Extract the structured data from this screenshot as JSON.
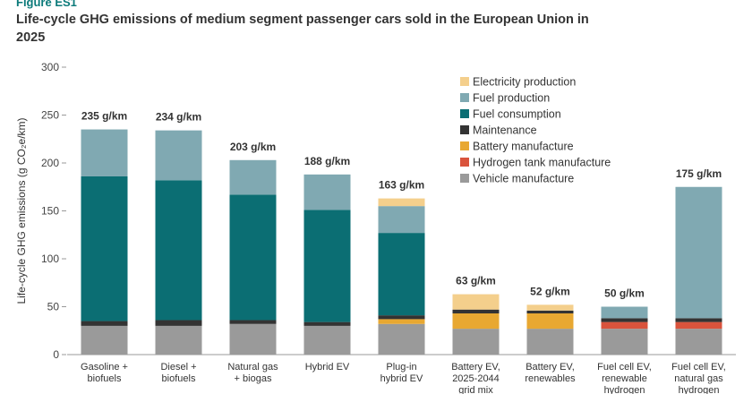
{
  "figure_label": "Figure ES1",
  "chart_data": {
    "type": "bar",
    "stacked": true,
    "title": "Life-cycle GHG emissions of medium segment passenger cars sold in the European Union in 2025",
    "ylabel": "Life-cycle GHG emissions (g CO₂e/km)",
    "xlabel": "",
    "ylim": [
      0,
      300
    ],
    "yticks": [
      0,
      50,
      100,
      150,
      200,
      250,
      300
    ],
    "grid": false,
    "legend_position": "top-right",
    "categories": [
      [
        "Gasoline +",
        "biofuels"
      ],
      [
        "Diesel +",
        "biofuels"
      ],
      [
        "Natural gas",
        "+ biogas"
      ],
      [
        "Hybrid EV"
      ],
      [
        "Plug-in",
        "hybrid EV"
      ],
      [
        "Battery EV,",
        "2025-2044",
        "grid mix"
      ],
      [
        "Battery EV,",
        "renewables"
      ],
      [
        "Fuel cell EV,",
        "renewable",
        "hydrogen"
      ],
      [
        "Fuel cell EV,",
        "natural gas",
        "hydrogen"
      ]
    ],
    "totals": [
      "235 g/km",
      "234 g/km",
      "203 g/km",
      "188 g/km",
      "163 g/km",
      "63 g/km",
      "52 g/km",
      "50 g/km",
      "175 g/km"
    ],
    "series": [
      {
        "name": "Vehicle manufacture",
        "color": "#9a9a9a",
        "values": [
          30,
          30,
          32,
          30,
          32,
          27,
          27,
          27,
          27
        ]
      },
      {
        "name": "Hydrogen tank manufacture",
        "color": "#d9533c",
        "values": [
          0,
          0,
          0,
          0,
          0,
          0,
          0,
          7,
          7
        ]
      },
      {
        "name": "Battery manufacture",
        "color": "#e8a832",
        "values": [
          0,
          0,
          0,
          0,
          5,
          16,
          16,
          0,
          0
        ]
      },
      {
        "name": "Maintenance",
        "color": "#333333",
        "values": [
          5,
          6,
          4,
          4,
          4,
          4,
          3,
          4,
          4
        ]
      },
      {
        "name": "Fuel consumption",
        "color": "#0b6e73",
        "values": [
          151,
          146,
          131,
          117,
          86,
          0,
          0,
          0,
          0
        ]
      },
      {
        "name": "Fuel production",
        "color": "#80a9b2",
        "values": [
          49,
          52,
          36,
          37,
          28,
          0,
          0,
          12,
          137
        ]
      },
      {
        "name": "Electricity production",
        "color": "#f4cf8c",
        "values": [
          0,
          0,
          0,
          0,
          8,
          16,
          6,
          0,
          0
        ]
      }
    ],
    "legend_order": [
      "Electricity production",
      "Fuel production",
      "Fuel consumption",
      "Maintenance",
      "Battery manufacture",
      "Hydrogen tank manufacture",
      "Vehicle manufacture"
    ]
  }
}
